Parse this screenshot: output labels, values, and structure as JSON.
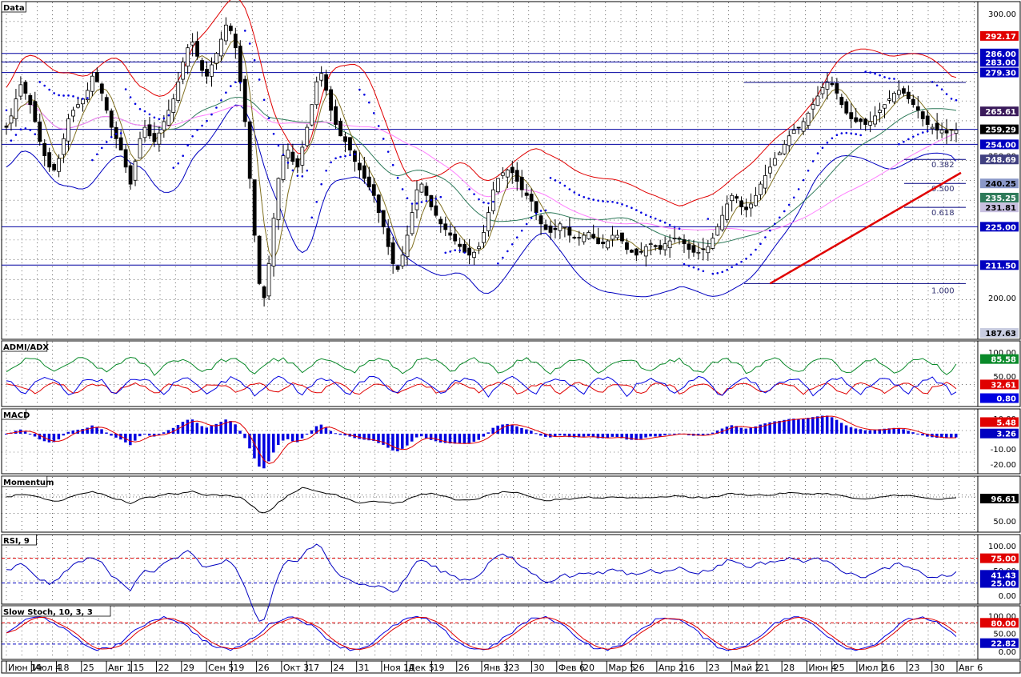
{
  "chart_data": {
    "type": "candlestick",
    "panels": {
      "price": {
        "title": "Data",
        "ylim": [
          187.63,
          302
        ],
        "right_ticks": [
          "300.00",
          "250.00",
          "200.00"
        ],
        "levels": [
          {
            "label": "292.17",
            "value": 292.17,
            "bg": "#e00000",
            "fg": "#ffffff"
          },
          {
            "label": "286.00",
            "value": 286.0,
            "bg": "#0000c0",
            "fg": "#ffffff",
            "hline": true
          },
          {
            "label": "283.00",
            "value": 283.0,
            "bg": "#0000c0",
            "fg": "#ffffff",
            "hline": true
          },
          {
            "label": "279.30",
            "value": 279.3,
            "bg": "#0000c0",
            "fg": "#ffffff",
            "hline": true
          },
          {
            "label": "265.61",
            "value": 265.61,
            "bg": "#3a1a5a",
            "fg": "#ffffff"
          },
          {
            "label": "259.29",
            "value": 259.29,
            "bg": "#000000",
            "fg": "#ffffff",
            "hline": true
          },
          {
            "label": "254.00",
            "value": 254.0,
            "bg": "#0000c0",
            "fg": "#ffffff",
            "hline": true
          },
          {
            "label": "248.69",
            "value": 248.69,
            "bg": "#404080",
            "fg": "#ffffff"
          },
          {
            "label": "240.25",
            "value": 240.25,
            "bg": "#8a98c8",
            "fg": "#000000"
          },
          {
            "label": "235.25",
            "value": 235.25,
            "bg": "#2e7a5a",
            "fg": "#ffffff"
          },
          {
            "label": "231.81",
            "value": 231.81,
            "bg": "#c8c0e0",
            "fg": "#000000"
          },
          {
            "label": "225.00",
            "value": 225.0,
            "bg": "#0000c0",
            "fg": "#ffffff",
            "hline": true
          },
          {
            "label": "211.50",
            "value": 211.5,
            "bg": "#0000c0",
            "fg": "#ffffff",
            "hline": true
          },
          {
            "label": "187.63",
            "value": 187.63,
            "bg": "#c8cce0",
            "fg": "#000000"
          }
        ],
        "fibonacci": [
          {
            "label": "0.382",
            "value": 248.69
          },
          {
            "label": "0.500",
            "value": 240.25
          },
          {
            "label": "0.618",
            "value": 231.81
          },
          {
            "label": "1.000",
            "value": 205.0
          }
        ],
        "fib_top": 275.8,
        "trendline": {
          "from": [
            160,
            205.0
          ],
          "to": [
            200,
            244.0
          ]
        }
      },
      "admi": {
        "title": "ADMI/ADX",
        "ylim": [
          0,
          110
        ],
        "ticks": [
          "100.00",
          "50.00"
        ],
        "values": [
          {
            "label": "85.58",
            "bg": "#0a8a2a"
          },
          {
            "label": "32.61",
            "bg": "#e00000"
          },
          {
            "label": "0.80",
            "bg": "#0000e0"
          }
        ]
      },
      "macd": {
        "title": "MACD",
        "ylim": [
          -22,
          12
        ],
        "ticks": [
          "10.00",
          "0.00",
          "-10.00",
          "-20.00"
        ],
        "values": [
          {
            "label": "5.48",
            "bg": "#e00000"
          },
          {
            "label": "3.26",
            "bg": "#0000c0"
          }
        ]
      },
      "momentum": {
        "title": "Momentum",
        "ylim": [
          40,
          130
        ],
        "ticks": [
          "100.00",
          "50.00"
        ],
        "values": [
          {
            "label": "96.61",
            "bg": "#000000"
          }
        ]
      },
      "rsi": {
        "title": "RSI, 9",
        "ylim": [
          -5,
          110
        ],
        "ticks": [
          "100.00",
          "50.00",
          "0.00"
        ],
        "levels": [
          75,
          25
        ],
        "values": [
          {
            "label": "75.00",
            "bg": "#e00000"
          },
          {
            "label": "41.43",
            "bg": "#0000c0"
          },
          {
            "label": "25.00",
            "bg": "#0000c0"
          }
        ]
      },
      "stoch": {
        "title": "Slow Stoch, 10, 3, 3",
        "ylim": [
          -5,
          110
        ],
        "ticks": [
          "100.00",
          "50.00",
          "0.00"
        ],
        "levels": [
          80,
          20
        ],
        "values": [
          {
            "label": "80.00",
            "bg": "#e00000"
          },
          {
            "label": "22.82",
            "bg": "#0000c0"
          }
        ]
      }
    },
    "x_axis": [
      "Июн 14",
      "Июл 4",
      "18",
      "25",
      "Авг 1",
      "15",
      "22",
      "29",
      "Сен 5",
      "19",
      "26",
      "Окт 3",
      "17",
      "24",
      "31",
      "Ноя 14",
      "Дек 5",
      "19",
      "26",
      "Янв 3",
      "23",
      "30",
      "Фев 6",
      "20",
      "Мар 5",
      "26",
      "Апр 2",
      "16",
      "23",
      "Май 2",
      "21",
      "28",
      "Июн 4",
      "25",
      "Июл 2",
      "16",
      "23",
      "30",
      "Авг 6"
    ],
    "price_series": [
      260,
      264,
      270,
      275,
      272,
      268,
      262,
      255,
      250,
      246,
      245,
      249,
      256,
      263,
      266,
      268,
      270,
      273,
      278,
      276,
      272,
      266,
      260,
      256,
      252,
      246,
      240,
      248,
      256,
      260,
      257,
      255,
      258,
      262,
      266,
      270,
      276,
      283,
      288,
      290,
      285,
      280,
      278,
      282,
      286,
      291,
      296,
      294,
      288,
      276,
      262,
      242,
      222,
      205,
      200,
      212,
      228,
      242,
      250,
      252,
      248,
      246,
      253,
      260,
      268,
      276,
      279,
      273,
      266,
      261,
      257,
      255,
      252,
      248,
      245,
      242,
      239,
      236,
      230,
      225,
      218,
      212,
      210,
      215,
      222,
      230,
      238,
      240,
      236,
      232,
      229,
      226,
      224,
      222,
      220,
      218,
      216,
      215,
      216,
      218,
      223,
      230,
      238,
      242,
      244,
      245,
      244,
      241,
      238,
      236,
      234,
      230,
      226,
      224,
      223,
      224,
      226,
      225,
      222,
      221,
      221,
      222,
      223,
      221,
      219,
      219,
      220,
      222,
      222,
      220,
      217,
      216,
      215,
      216,
      218,
      219,
      218,
      217,
      219,
      220,
      221,
      221,
      219,
      217,
      216,
      216,
      217,
      218,
      221,
      225,
      229,
      233,
      236,
      235,
      232,
      231,
      233,
      236,
      240,
      243,
      246,
      249,
      251,
      254,
      257,
      259,
      260,
      262,
      265,
      268,
      271,
      274,
      276,
      275,
      272,
      268,
      265,
      263,
      262,
      262,
      261,
      262,
      264,
      266,
      268,
      270,
      272,
      273,
      272,
      270,
      268,
      266,
      263,
      261,
      260,
      259,
      259,
      258,
      259,
      259
    ]
  }
}
